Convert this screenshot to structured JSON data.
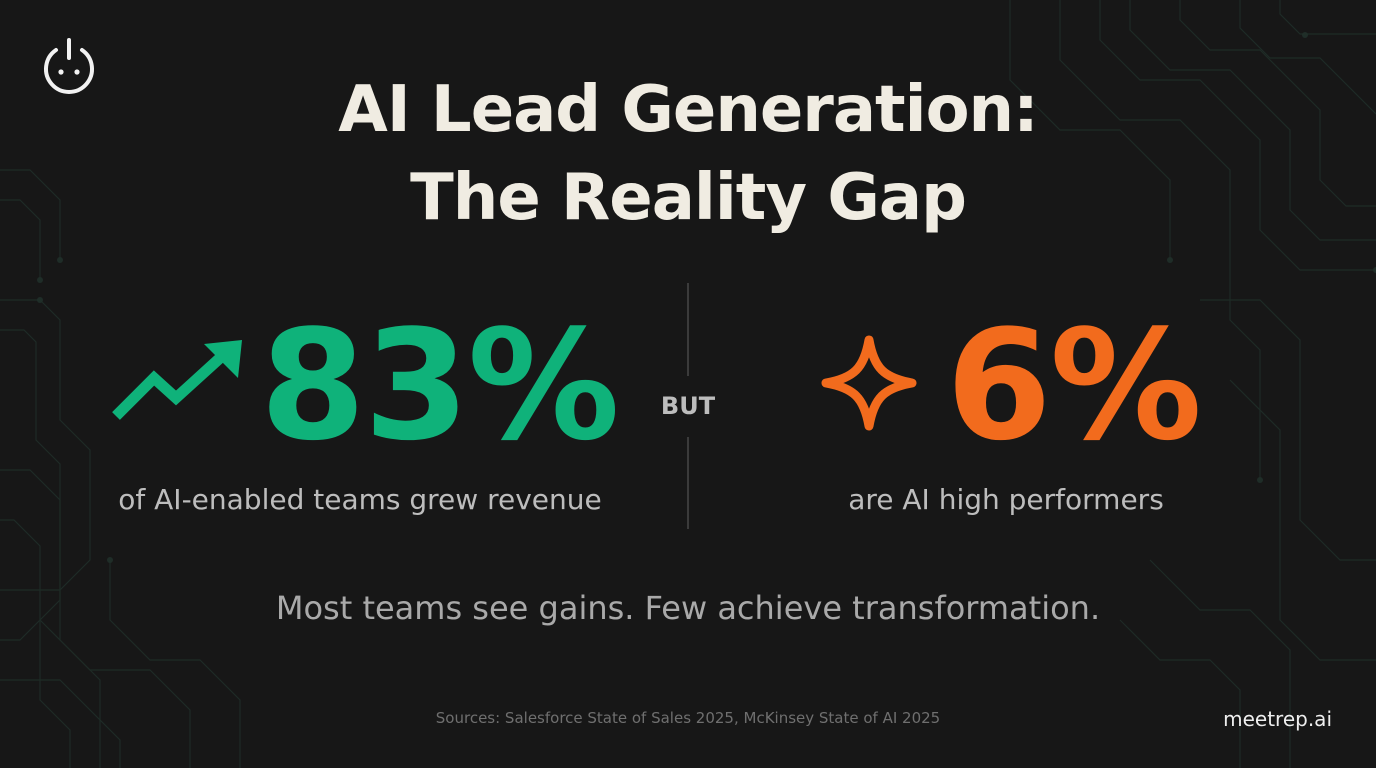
{
  "title": {
    "line1": "AI Lead Generation:",
    "line2": "The Reality Gap"
  },
  "stats": {
    "left": {
      "value": "83%",
      "caption": "of AI-enabled teams grew revenue",
      "icon": "trending-up-icon",
      "color": "#0fb27a"
    },
    "connector": "BUT",
    "right": {
      "value": "6%",
      "caption": "are AI high performers",
      "icon": "sparkle-icon",
      "color": "#f26b1d"
    }
  },
  "tagline": "Most teams see gains. Few achieve transformation.",
  "sources": "Sources: Salesforce State of Sales 2025, McKinsey State of AI 2025",
  "brand": "meetrep.ai",
  "logo": {
    "icon": "power-face-icon"
  },
  "colors": {
    "background": "#171717",
    "title": "#f0ece2",
    "accent_green": "#0fb27a",
    "accent_orange": "#f26b1d",
    "circuit_lines": "#1f2b25"
  }
}
